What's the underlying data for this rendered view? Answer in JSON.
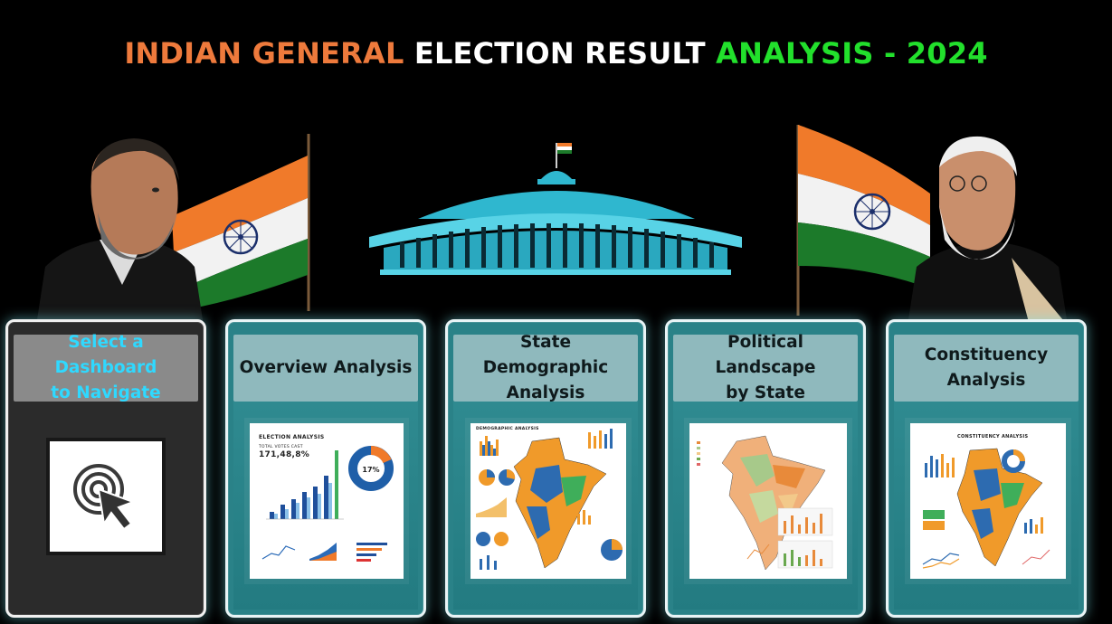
{
  "title": {
    "part1": "INDIAN GENERAL",
    "part2": "ELECTION RESULT",
    "part3": "ANALYSIS - 2024",
    "colors": {
      "part1": "#ee7a3c",
      "part2": "#ffffff",
      "part3": "#22e02c"
    }
  },
  "hero": {
    "left_figure": "person-left",
    "right_figure": "person-right",
    "center_image": "parliament-building-icon",
    "flags": "indian-flag-icon"
  },
  "cards": [
    {
      "label_line1": "Select a Dashboard",
      "label_line2": "to Navigate",
      "icon": "pointer-click-icon"
    },
    {
      "label_line1": "Overview Analysis",
      "label_line2": "",
      "thumb_title": "ELECTION ANALYSIS",
      "thumb_kpi_label": "TOTAL VOTES CAST",
      "thumb_kpi_value": "171,48,8%",
      "thumb_donut_value": "17%"
    },
    {
      "label_line1": "State Demographic",
      "label_line2": "Analysis",
      "thumb_title": "DEMOGRAPHIC ANALYSIS"
    },
    {
      "label_line1": "Political Landscape",
      "label_line2": "by State",
      "thumb_title": ""
    },
    {
      "label_line1": "Constituency",
      "label_line2": "Analysis",
      "thumb_title": "CONSTITUENCY ANALYSIS"
    }
  ],
  "palette": {
    "card_teal": "#2a8288",
    "card_header": "#8fb9bd",
    "selector_header_text": "#2fd9ff",
    "flag_saffron": "#f07a2a",
    "flag_green": "#1c7a2a",
    "parliament_cyan": "#2fb7cf"
  }
}
